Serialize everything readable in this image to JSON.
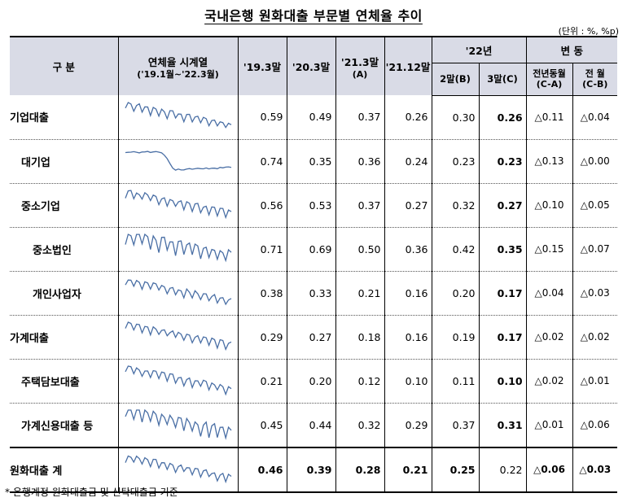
{
  "title": "국내은행 원화대출 부문별 연체율 추이",
  "unit": "(단위 : %, %p)",
  "header": {
    "category": "구  분",
    "trend_line1": "연체율 시계열",
    "trend_line2": "('19.1월~'22.3월)",
    "c1": "'19.3말",
    "c2": "'20.3말",
    "c3_line1": "'21.3말",
    "c3_line2": "(A)",
    "c4": "'21.12말",
    "y22": "'22년",
    "feb": "2말(B)",
    "mar": "3말(C)",
    "change": "변   동",
    "yoy_line1": "전년동월",
    "yoy_line2": "(C-A)",
    "mom_line1": "전 월",
    "mom_line2": "(C-B)"
  },
  "rows": [
    {
      "label": "기업대출",
      "v19": "0.59",
      "v20": "0.49",
      "v21": "0.37",
      "v2112": "0.26",
      "feb": "0.30",
      "mar": "0.26",
      "yoy": "△0.11",
      "mom": "△0.04"
    },
    {
      "label": "대기업",
      "v19": "0.74",
      "v20": "0.35",
      "v21": "0.36",
      "v2112": "0.24",
      "feb": "0.23",
      "mar": "0.23",
      "yoy": "△0.13",
      "mom": "△0.00"
    },
    {
      "label": "중소기업",
      "v19": "0.56",
      "v20": "0.53",
      "v21": "0.37",
      "v2112": "0.27",
      "feb": "0.32",
      "mar": "0.27",
      "yoy": "△0.10",
      "mom": "△0.05"
    },
    {
      "label": "중소법인",
      "v19": "0.71",
      "v20": "0.69",
      "v21": "0.50",
      "v2112": "0.36",
      "feb": "0.42",
      "mar": "0.35",
      "yoy": "△0.15",
      "mom": "△0.07"
    },
    {
      "label": "개인사업자",
      "v19": "0.38",
      "v20": "0.33",
      "v21": "0.21",
      "v2112": "0.16",
      "feb": "0.20",
      "mar": "0.17",
      "yoy": "△0.04",
      "mom": "△0.03"
    },
    {
      "label": "가계대출",
      "v19": "0.29",
      "v20": "0.27",
      "v21": "0.18",
      "v2112": "0.16",
      "feb": "0.19",
      "mar": "0.17",
      "yoy": "△0.02",
      "mom": "△0.02"
    },
    {
      "label": "주택담보대출",
      "v19": "0.21",
      "v20": "0.20",
      "v21": "0.12",
      "v2112": "0.10",
      "feb": "0.11",
      "mar": "0.10",
      "yoy": "△0.02",
      "mom": "△0.01"
    },
    {
      "label": "가계신용대출 등",
      "v19": "0.45",
      "v20": "0.44",
      "v21": "0.32",
      "v2112": "0.29",
      "feb": "0.37",
      "mar": "0.31",
      "yoy": "△0.01",
      "mom": "△0.06"
    },
    {
      "label": "원화대출 계",
      "v19": "0.46",
      "v20": "0.39",
      "v21": "0.28",
      "v2112": "0.21",
      "feb": "0.25",
      "mar": "0.22",
      "yoy": "△0.06",
      "mom": "△0.03"
    }
  ],
  "spark_color": "#4a6fa5",
  "footnote": "* 은행계정 원화대출금 및 신탁대출금 기준"
}
